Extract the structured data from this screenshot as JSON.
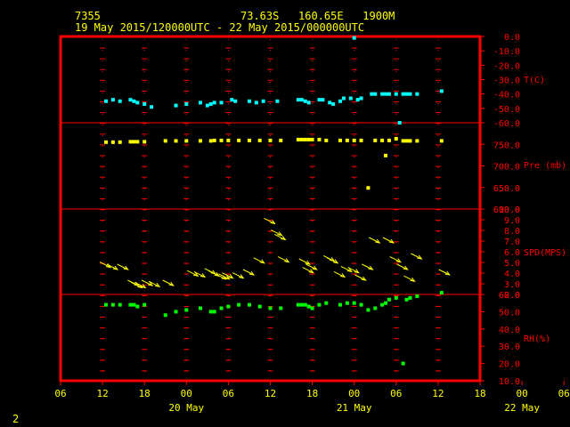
{
  "header": {
    "station": "7355",
    "location": "73.63S   160.65E   1900M",
    "period": "19 May 2015/120000UTC - 22 May 2015/000000UTC"
  },
  "footer": {
    "page_number": "2"
  },
  "chart_data": [
    {
      "type": "scatter",
      "panel": "temperature",
      "ylabel": "T(C)",
      "color": "#00ffff",
      "ylim": [
        -60,
        0
      ],
      "ticks": [
        "0.0",
        "-10.0",
        "-20.0",
        "-30.0",
        "-40.0",
        "-50.0",
        "-60.0"
      ],
      "x": [
        12.5,
        13.5,
        14.5,
        16,
        16.5,
        17,
        18,
        19,
        22.5,
        24,
        26,
        27,
        27.5,
        28,
        29,
        30.5,
        31,
        33,
        34,
        35,
        37,
        40,
        40.5,
        41,
        41.5,
        43,
        43.5,
        44.5,
        45,
        46,
        46.5,
        47.5,
        48,
        48.5,
        49,
        50.5,
        51,
        52,
        52.5,
        53,
        54,
        54.5,
        55,
        55.5,
        56,
        57,
        60.5
      ],
      "y": [
        -45,
        -44,
        -45,
        -44,
        -45,
        -46,
        -47,
        -49,
        -48,
        -47,
        -46,
        -48,
        -47,
        -46,
        -46,
        -44,
        -45,
        -45,
        -46,
        -45,
        -45,
        -44,
        -44,
        -45,
        -46,
        -44,
        -44,
        -46,
        -47,
        -45,
        -43,
        -43,
        -1,
        -44,
        -43,
        -40,
        -40,
        -40,
        -40,
        -40,
        -40,
        -60,
        -40,
        -40,
        -40,
        -40,
        -38
      ]
    },
    {
      "type": "scatter",
      "panel": "pressure",
      "ylabel": "Pre (mb)",
      "color": "#ffff00",
      "ylim": [
        600,
        800
      ],
      "ticks": [
        "750.0",
        "700.0",
        "650.0",
        "600.0"
      ],
      "x": [
        12.5,
        13.5,
        14.5,
        16,
        16.5,
        17,
        18,
        21,
        22.5,
        24,
        26,
        27.5,
        28,
        29,
        30,
        31.5,
        33,
        34.5,
        36,
        37.5,
        40,
        40.5,
        41,
        41.5,
        42,
        43,
        44,
        46,
        47,
        48,
        49,
        50,
        51,
        52,
        52.5,
        53,
        54,
        55,
        55.5,
        56,
        57,
        60.5
      ],
      "y": [
        755,
        755,
        755,
        756,
        756,
        756,
        756,
        758,
        758,
        758,
        758,
        758,
        759,
        759,
        759,
        759,
        759,
        759,
        759,
        759,
        761,
        761,
        761,
        761,
        761,
        761,
        759,
        759,
        759,
        759,
        759,
        649,
        759,
        759,
        724,
        759,
        763,
        758,
        758,
        758,
        758,
        758
      ]
    },
    {
      "type": "barb",
      "panel": "wind",
      "ylabel": "SPD(MPS)",
      "color": "#ffff00",
      "ylim": [
        2,
        10
      ],
      "ticks": [
        "10.0",
        "9.0",
        "8.0",
        "7.0",
        "6.0",
        "5.0",
        "4.0",
        "3.0",
        "2.0"
      ],
      "x": [
        12.5,
        13.5,
        15,
        16.5,
        17,
        17.5,
        18.5,
        19.5,
        21.5,
        25,
        26,
        27.5,
        28,
        29,
        29.5,
        30,
        31.5,
        33,
        34.5,
        36,
        37,
        37.5,
        38,
        41,
        41.5,
        42,
        44.5,
        45,
        46,
        47,
        48,
        49,
        50,
        51,
        53,
        54,
        55,
        56,
        57,
        61
      ],
      "y": [
        4.7,
        4.5,
        4.5,
        3.0,
        2.8,
        2.8,
        3.0,
        2.9,
        3.0,
        3.9,
        3.8,
        4.1,
        3.9,
        3.6,
        3.6,
        3.7,
        3.7,
        4.0,
        5.1,
        8.8,
        7.7,
        7.3,
        5.2,
        5.0,
        4.2,
        4.5,
        5.3,
        5.1,
        3.8,
        4.3,
        4.2,
        3.5,
        4.5,
        7.0,
        7.0,
        5.2,
        4.5,
        3.4,
        5.5,
        4.0
      ]
    },
    {
      "type": "scatter",
      "panel": "humidity",
      "ylabel": "RH(%)",
      "color": "#00ff00",
      "ylim": [
        10,
        60
      ],
      "ticks": [
        "60.0",
        "50.0",
        "40.0",
        "30.0",
        "20.0",
        "10.0"
      ],
      "x": [
        12.5,
        13.5,
        14.5,
        16,
        16.5,
        17,
        18,
        21,
        22.5,
        24,
        26,
        27.5,
        28,
        29,
        30,
        31.5,
        33,
        34.5,
        36,
        37.5,
        40,
        40.5,
        41,
        41.5,
        42,
        43,
        44,
        46,
        47,
        48,
        49,
        50,
        51,
        52,
        52.5,
        53,
        54,
        55,
        55.5,
        56,
        57,
        60.5
      ],
      "y": [
        54,
        54,
        54,
        54,
        54,
        53,
        54,
        48,
        50,
        51,
        52,
        50,
        50,
        52,
        53,
        54,
        54,
        53,
        52,
        52,
        54,
        54,
        54,
        53,
        52,
        54,
        55,
        54,
        55,
        55,
        54,
        51,
        52,
        54,
        55,
        57,
        58,
        20,
        57,
        58,
        59,
        61
      ]
    }
  ],
  "x_axis": {
    "ticks": [
      "06",
      "12",
      "18",
      "00",
      "06",
      "12",
      "18",
      "00",
      "06",
      "12",
      "18",
      "00",
      "06"
    ],
    "day_labels": [
      "20 May",
      "21 May",
      "22 May"
    ]
  }
}
